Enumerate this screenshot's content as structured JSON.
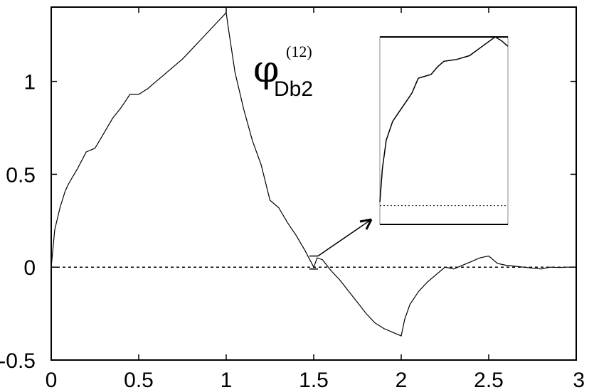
{
  "chart_data": {
    "type": "line",
    "title": "",
    "xlabel": "",
    "ylabel": "",
    "xlim": [
      0,
      3
    ],
    "ylim": [
      -0.5,
      1.4
    ],
    "xticks": [
      0,
      0.5,
      1,
      1.5,
      2,
      2.5,
      3
    ],
    "xtick_labels": [
      "0",
      "0.5",
      "1",
      "1.5",
      "2",
      "2.5",
      "3"
    ],
    "yticks": [
      -0.5,
      0,
      0.5,
      1
    ],
    "ytick_labels": [
      "-0.5",
      "0",
      "0.5",
      "1"
    ],
    "annotation": {
      "symbol": "φ",
      "superscript": "(12)",
      "subscript": "Db2"
    },
    "zero_line": {
      "y": 0,
      "style": "dotted"
    },
    "series": [
      {
        "x": [
          0,
          0.02,
          0.05,
          0.08,
          0.1,
          0.15,
          0.2,
          0.25,
          0.3,
          0.35,
          0.4,
          0.45,
          0.5,
          0.55,
          0.6,
          0.65,
          0.7,
          0.75,
          0.8,
          0.85,
          0.9,
          0.95,
          1.0,
          1.01,
          1.05,
          1.1,
          1.15,
          1.2,
          1.25,
          1.3,
          1.35,
          1.4,
          1.45,
          1.5,
          1.52,
          1.55,
          1.6,
          1.65,
          1.7,
          1.75,
          1.8,
          1.85,
          1.9,
          1.95,
          2.0,
          2.02,
          2.05,
          2.1,
          2.15,
          2.2,
          2.25,
          2.3,
          2.35,
          2.4,
          2.45,
          2.5,
          2.55,
          2.6,
          2.65,
          2.7,
          2.75,
          2.8,
          2.85,
          2.9,
          2.95,
          3.0
        ],
        "y": [
          0,
          0.2,
          0.32,
          0.41,
          0.45,
          0.53,
          0.62,
          0.64,
          0.72,
          0.8,
          0.86,
          0.93,
          0.93,
          0.96,
          1.0,
          1.04,
          1.08,
          1.12,
          1.17,
          1.22,
          1.27,
          1.32,
          1.37,
          1.3,
          1.05,
          0.85,
          0.68,
          0.55,
          0.36,
          0.32,
          0.24,
          0.17,
          0.09,
          0.0,
          0.05,
          0.04,
          -0.02,
          -0.07,
          -0.13,
          -0.19,
          -0.25,
          -0.3,
          -0.33,
          -0.35,
          -0.37,
          -0.28,
          -0.2,
          -0.13,
          -0.08,
          -0.04,
          0.0,
          -0.01,
          0.01,
          0.03,
          0.05,
          0.06,
          0.02,
          0.01,
          0.005,
          0.0,
          -0.005,
          -0.01,
          0.0,
          -0.002,
          0.0,
          0.0
        ]
      }
    ],
    "inset": {
      "border_color": "#000000",
      "dotted_level_fraction": 0.1,
      "curve": [
        [
          0.0,
          0.12
        ],
        [
          0.02,
          0.3
        ],
        [
          0.05,
          0.45
        ],
        [
          0.1,
          0.55
        ],
        [
          0.15,
          0.6
        ],
        [
          0.2,
          0.65
        ],
        [
          0.25,
          0.7
        ],
        [
          0.3,
          0.78
        ],
        [
          0.4,
          0.8
        ],
        [
          0.45,
          0.84
        ],
        [
          0.5,
          0.87
        ],
        [
          0.6,
          0.88
        ],
        [
          0.7,
          0.9
        ],
        [
          0.8,
          0.95
        ],
        [
          0.9,
          1.0
        ],
        [
          0.95,
          0.98
        ],
        [
          1.0,
          0.95
        ]
      ]
    }
  }
}
